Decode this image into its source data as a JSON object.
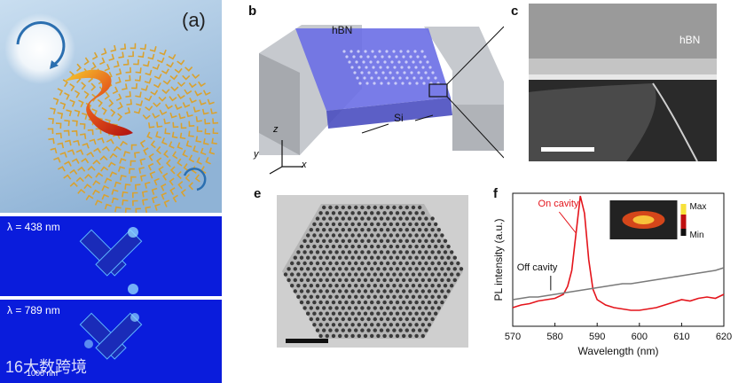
{
  "panel_a": {
    "label": "(a)",
    "field1": "λ = 438 nm",
    "field2": "λ = 789 nm",
    "scale": "1000 nm",
    "watermark": "大数跨境",
    "watermark_prefix": "16",
    "colors": {
      "sky": "#a9c8e4",
      "field_bg": "#0a1cdc",
      "gold": "#d9a230"
    }
  },
  "panel_b": {
    "label": "b",
    "hbn": "hBN",
    "si": "Si",
    "axis_z": "z",
    "axis_y": "y",
    "axis_x": "x",
    "colors": {
      "hbn": "#6a6ee6",
      "si": "#b9bcc1"
    }
  },
  "panel_c": {
    "label": "c",
    "hbn": "hBN"
  },
  "panel_e": {
    "label": "e"
  },
  "panel_f": {
    "label": "f"
  },
  "chart_data": {
    "type": "line",
    "xlabel": "Wavelength (nm)",
    "ylabel": "PL intensity (a.u.)",
    "xlim": [
      570,
      620
    ],
    "xticks": [
      "570",
      "580",
      "590",
      "600",
      "610",
      "620"
    ],
    "annotations": [
      "On cavity",
      "Off cavity"
    ],
    "inset_colorbar": {
      "max": "Max",
      "min": "Min"
    },
    "series": [
      {
        "name": "On cavity",
        "color": "#e4141b",
        "x": [
          570,
          572,
          574,
          576,
          578,
          580,
          582,
          583,
          584,
          585,
          586,
          587,
          588,
          589,
          590,
          592,
          594,
          596,
          598,
          600,
          602,
          604,
          606,
          608,
          610,
          612,
          614,
          616,
          618,
          620
        ],
        "y": [
          0.14,
          0.16,
          0.17,
          0.19,
          0.2,
          0.21,
          0.24,
          0.3,
          0.42,
          0.7,
          0.98,
          0.85,
          0.5,
          0.28,
          0.2,
          0.16,
          0.14,
          0.13,
          0.12,
          0.12,
          0.13,
          0.14,
          0.16,
          0.18,
          0.2,
          0.19,
          0.21,
          0.22,
          0.21,
          0.24
        ]
      },
      {
        "name": "Off cavity",
        "color": "#7a7a7a",
        "x": [
          570,
          572,
          574,
          576,
          578,
          580,
          582,
          584,
          586,
          588,
          590,
          592,
          594,
          596,
          598,
          600,
          602,
          604,
          606,
          608,
          610,
          612,
          614,
          616,
          618,
          620
        ],
        "y": [
          0.2,
          0.21,
          0.22,
          0.22,
          0.23,
          0.24,
          0.25,
          0.26,
          0.27,
          0.28,
          0.29,
          0.3,
          0.31,
          0.32,
          0.32,
          0.33,
          0.34,
          0.35,
          0.36,
          0.37,
          0.38,
          0.39,
          0.4,
          0.41,
          0.42,
          0.44
        ]
      }
    ]
  }
}
